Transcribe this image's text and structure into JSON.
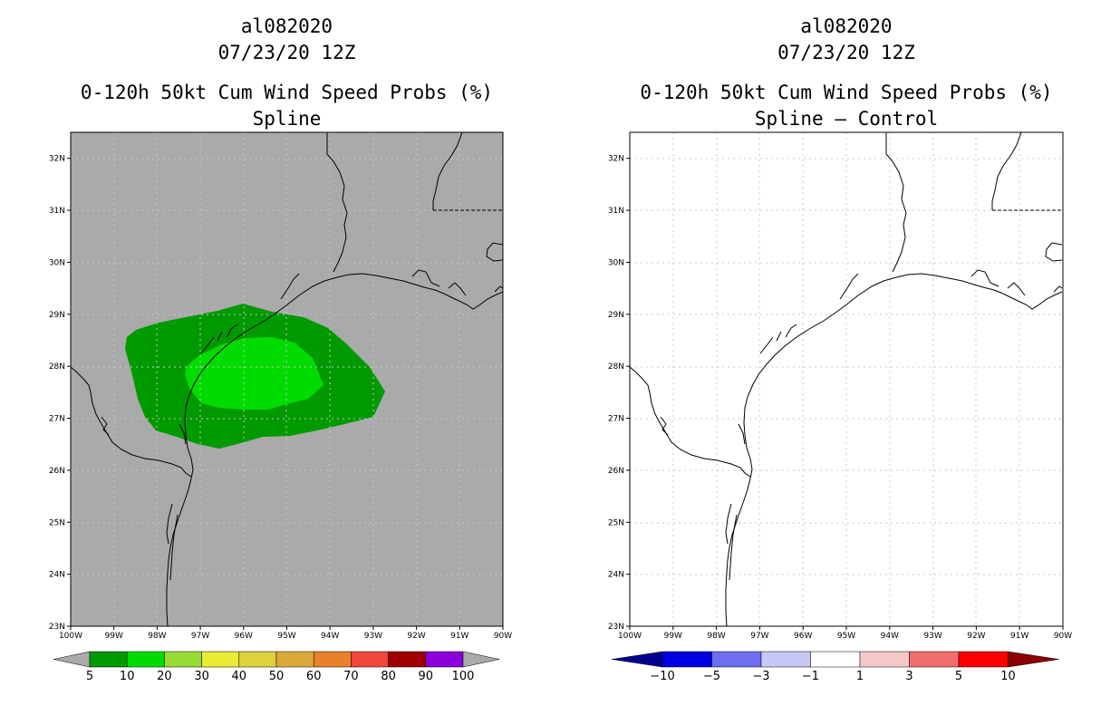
{
  "left_panel": {
    "storm_id": "al082020",
    "datetime": "07/23/20 12Z",
    "product": "0-120h 50kt Cum Wind Speed Probs (%)",
    "subtitle": "Spline"
  },
  "right_panel": {
    "storm_id": "al082020",
    "datetime": "07/23/20 12Z",
    "product": "0-120h 50kt Cum Wind Speed Probs (%)",
    "subtitle": "Spline – Control"
  },
  "map_extent": {
    "lon": [
      -100,
      -90
    ],
    "lat": [
      23,
      32.5
    ]
  },
  "lat_labels": [
    "23N",
    "24N",
    "25N",
    "26N",
    "27N",
    "28N",
    "29N",
    "30N",
    "31N",
    "32N"
  ],
  "lon_labels": [
    "100W",
    "99W",
    "98W",
    "97W",
    "96W",
    "95W",
    "94W",
    "93W",
    "92W",
    "91W",
    "90W"
  ],
  "colors": {
    "land_background": "#aaaaaa",
    "coast": "#000000",
    "grid": "#c8c8c8",
    "prob_5_10": "#009a00",
    "prob_10_20": "#00dc00"
  },
  "left_colorbar": {
    "labels": [
      "5",
      "10",
      "20",
      "30",
      "40",
      "50",
      "60",
      "70",
      "80",
      "90",
      "100"
    ],
    "colors": [
      "#009a00",
      "#00dc00",
      "#96dc32",
      "#eaeb33",
      "#dcd23c",
      "#dba937",
      "#e8812b",
      "#f0463c",
      "#a00000",
      "#8c00dc"
    ],
    "under_color": "#aaaaaa",
    "over_color": "#aaaaaa"
  },
  "right_colorbar": {
    "labels": [
      "−10",
      "−5",
      "−3",
      "−1",
      "1",
      "3",
      "5",
      "10"
    ],
    "colors": [
      "#0000e0",
      "#6e6ef0",
      "#c8c8f5",
      "#ffffff",
      "#f5c8c8",
      "#f06e6e",
      "#ff0000"
    ],
    "under_color": "#00008c",
    "over_color": "#8c0000"
  }
}
